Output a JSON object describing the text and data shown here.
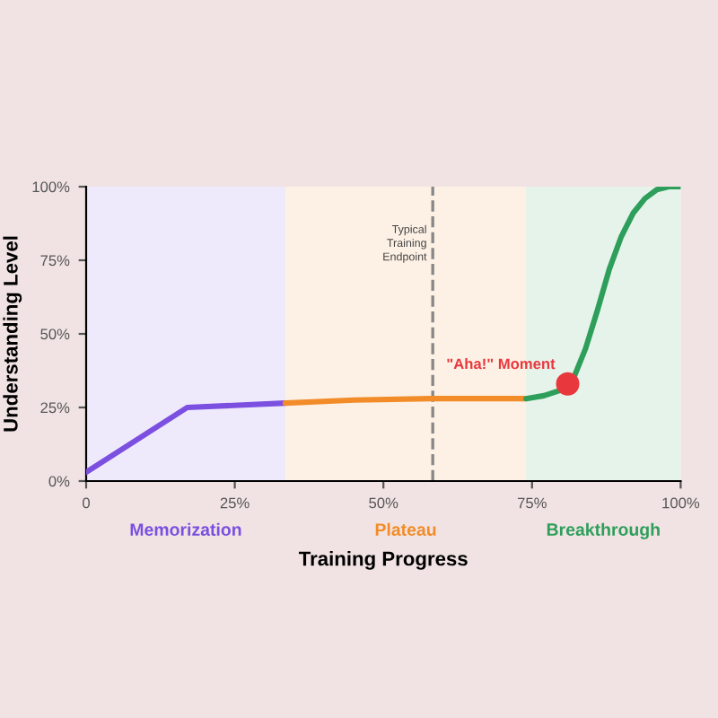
{
  "chart_data": {
    "type": "line",
    "xlabel": "Training Progress",
    "ylabel": "Understanding Level",
    "xlim": [
      0,
      100
    ],
    "ylim": [
      0,
      100
    ],
    "xticks": [
      {
        "value": 0,
        "label": "0"
      },
      {
        "value": 25,
        "label": "25%"
      },
      {
        "value": 50,
        "label": "50%"
      },
      {
        "value": 75,
        "label": "75%"
      },
      {
        "value": 100,
        "label": "100%"
      }
    ],
    "yticks": [
      {
        "value": 0,
        "label": "0%"
      },
      {
        "value": 25,
        "label": "25%"
      },
      {
        "value": 50,
        "label": "50%"
      },
      {
        "value": 75,
        "label": "75%"
      },
      {
        "value": 100,
        "label": "100%"
      }
    ],
    "grid": false,
    "legend": false,
    "line_style": "solid",
    "series": [
      {
        "color": "#7b4fe0",
        "x": [
          0,
          17,
          33.5
        ],
        "values": [
          3,
          25,
          26.5
        ]
      },
      {
        "color": "#f28c28",
        "x": [
          33.5,
          45,
          58,
          74
        ],
        "values": [
          26.5,
          27.5,
          28,
          28
        ]
      },
      {
        "color": "#2e9e5b",
        "x": [
          74,
          77,
          80,
          82,
          84,
          86,
          88,
          90,
          92,
          94,
          96,
          98,
          100
        ],
        "values": [
          28,
          29,
          31,
          35,
          45,
          58,
          72,
          83,
          91,
          96,
          99,
          100,
          100
        ]
      },
      {
        "type": "scatter",
        "marker": "circle",
        "color": "#e8383d",
        "x": [
          81
        ],
        "values": [
          33
        ]
      }
    ],
    "bands": [
      {
        "axis": "x",
        "from": 0,
        "to": 33.5,
        "label": "Memorization",
        "color": "#7b4fe0"
      },
      {
        "axis": "x",
        "from": 33.5,
        "to": 74,
        "label": "Plateau",
        "color": "#f28c28"
      },
      {
        "axis": "x",
        "from": 74,
        "to": 100,
        "label": "Breakthrough",
        "color": "#2e9e5b"
      }
    ],
    "ref_lines": [
      {
        "axis": "x",
        "value": 58.3,
        "label": "Typical\nTraining\nEndpoint",
        "color": "#888888",
        "line_style": "dashed"
      }
    ],
    "annotations": [
      {
        "text": "\"Aha!\" Moment",
        "x": 81,
        "y": 33
      }
    ]
  }
}
